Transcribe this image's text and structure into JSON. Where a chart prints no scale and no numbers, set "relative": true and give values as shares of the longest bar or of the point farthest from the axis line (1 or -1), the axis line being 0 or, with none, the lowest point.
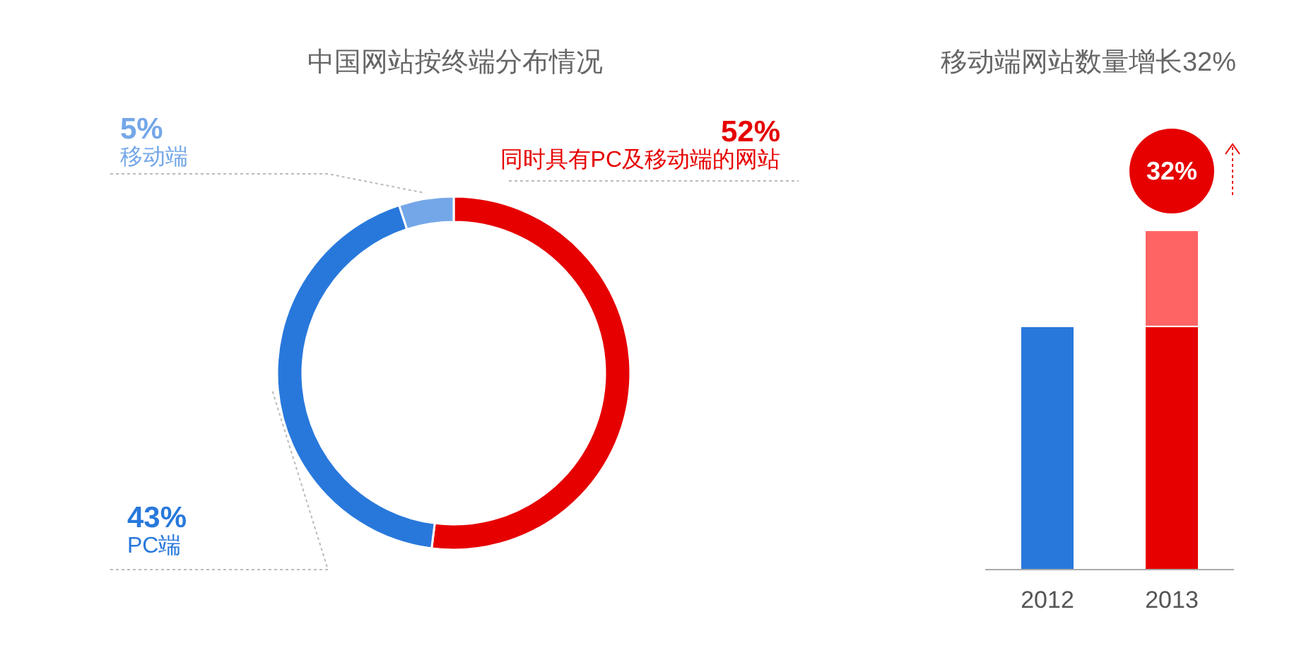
{
  "chart_data": [
    {
      "type": "donut",
      "title": "中国网站按终端分布情况",
      "categories": [
        "同时具有PC及移动端的网站",
        "PC端",
        "移动端"
      ],
      "values": [
        52,
        43,
        5
      ],
      "colors": [
        "#e60000",
        "#2878dc",
        "#74a7e8"
      ],
      "value_labels": [
        "52%",
        "43%",
        "5%"
      ]
    },
    {
      "type": "bar",
      "title": "移动端网站数量增长32%",
      "categories": [
        "2012",
        "2013"
      ],
      "relative": true,
      "stacked": true,
      "series": [
        {
          "colors": [
            "#2878dc",
            "#e60000"
          ],
          "values": [
            0.717,
            0.717
          ]
        },
        {
          "color": "#ff6464",
          "values": [
            null,
            0.283
          ]
        }
      ],
      "annotations": [
        "32%"
      ]
    }
  ]
}
